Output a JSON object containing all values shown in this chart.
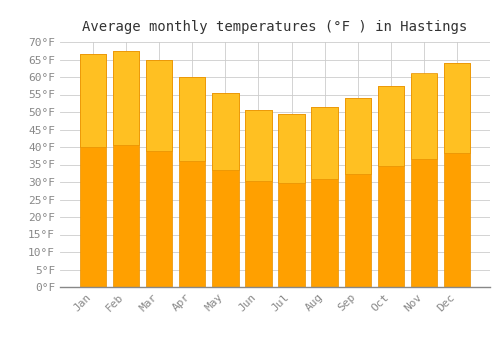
{
  "title": "Average monthly temperatures (°F ) in Hastings",
  "months": [
    "Jan",
    "Feb",
    "Mar",
    "Apr",
    "May",
    "Jun",
    "Jul",
    "Aug",
    "Sep",
    "Oct",
    "Nov",
    "Dec"
  ],
  "values": [
    66.5,
    67.5,
    65.0,
    60.0,
    55.5,
    50.5,
    49.5,
    51.5,
    54.0,
    57.5,
    61.0,
    64.0
  ],
  "bar_color_top": "#FFC022",
  "bar_color_bottom": "#FFA000",
  "bar_edge_color": "#E89000",
  "ylim": [
    0,
    70
  ],
  "yticks": [
    0,
    5,
    10,
    15,
    20,
    25,
    30,
    35,
    40,
    45,
    50,
    55,
    60,
    65,
    70
  ],
  "background_color": "#FFFFFF",
  "grid_color": "#CCCCCC",
  "title_fontsize": 10,
  "tick_fontsize": 8
}
